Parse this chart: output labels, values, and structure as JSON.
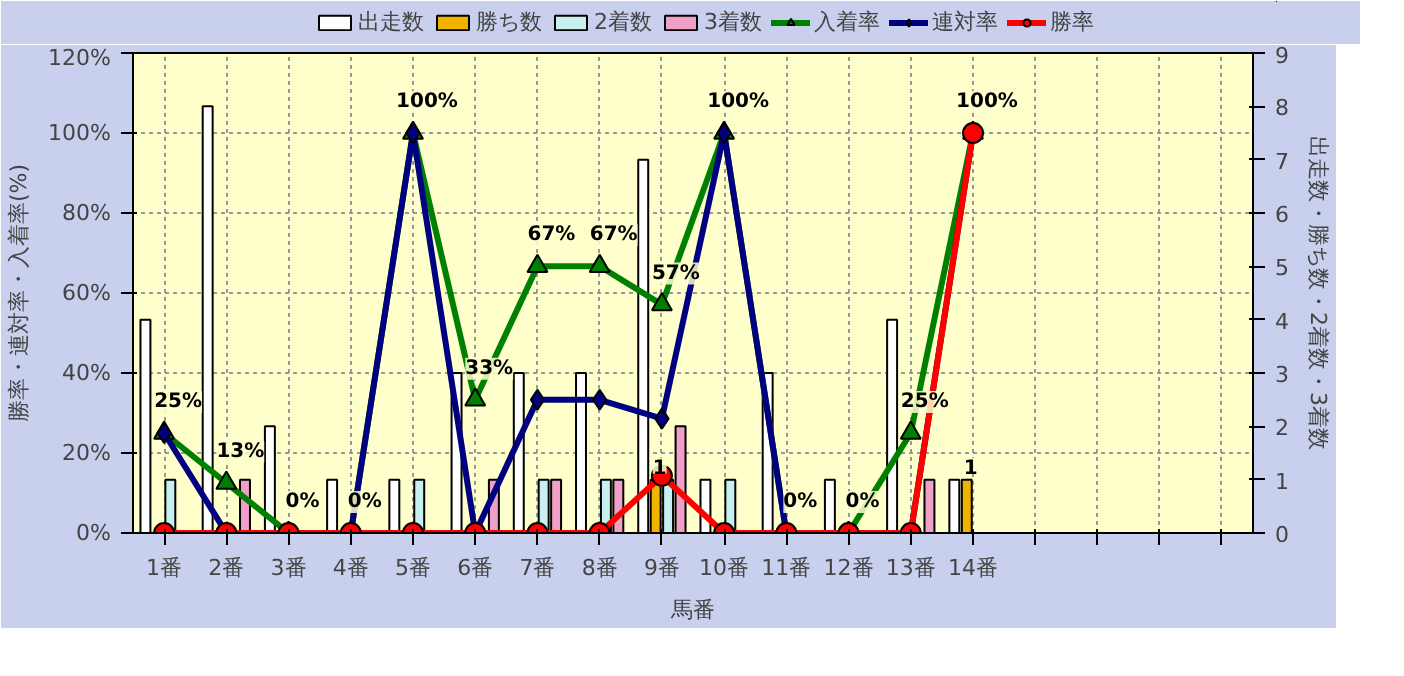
{
  "chart_data": {
    "type": "bar",
    "xlabel": "馬番",
    "ylabel": "勝率・連対率・入着率(%)",
    "y2label": "出走数・勝ち数・2着数・3着数",
    "categories": [
      "1番",
      "2番",
      "3番",
      "4番",
      "5番",
      "6番",
      "7番",
      "8番",
      "9番",
      "10番",
      "11番",
      "12番",
      "13番",
      "14番",
      null,
      null,
      null,
      null
    ],
    "ylim": [
      0,
      120
    ],
    "yticks": [
      {
        "value": 0,
        "label": "0%"
      },
      {
        "value": 20,
        "label": "20%"
      },
      {
        "value": 40,
        "label": "40%"
      },
      {
        "value": 60,
        "label": "60%"
      },
      {
        "value": 80,
        "label": "80%"
      },
      {
        "value": 100,
        "label": "100%"
      },
      {
        "value": 120,
        "label": "120%"
      }
    ],
    "y2lim": [
      0,
      9
    ],
    "y2ticks": [
      0,
      1,
      2,
      3,
      4,
      5,
      6,
      7,
      8,
      9
    ],
    "grid": true,
    "legend": "top",
    "series": [
      {
        "name": "出走数",
        "axis": "y2",
        "color": "#ffffff",
        "values": [
          4,
          8,
          2,
          1,
          1,
          3,
          3,
          3,
          7,
          1,
          3,
          1,
          4,
          1,
          null,
          null,
          null,
          null
        ]
      },
      {
        "name": "勝ち数",
        "axis": "y2",
        "color": "#f0b400",
        "values": [
          0,
          0,
          0,
          0,
          0,
          0,
          0,
          0,
          1,
          0,
          0,
          0,
          0,
          1,
          null,
          null,
          null,
          null
        ],
        "value_labels": [
          null,
          null,
          null,
          null,
          null,
          null,
          null,
          null,
          "1",
          null,
          null,
          null,
          null,
          "1",
          null,
          null,
          null,
          null
        ]
      },
      {
        "name": "2着数",
        "axis": "y2",
        "color": "#c8f0f0",
        "values": [
          1,
          0,
          0,
          0,
          1,
          0,
          1,
          1,
          1,
          1,
          0,
          0,
          0,
          0,
          null,
          null,
          null,
          null
        ]
      },
      {
        "name": "3着数",
        "axis": "y2",
        "color": "#f0a0c8",
        "values": [
          0,
          1,
          0,
          0,
          0,
          1,
          1,
          1,
          2,
          0,
          0,
          0,
          1,
          0,
          null,
          null,
          null,
          null
        ]
      },
      {
        "name": "入着率",
        "type": "line",
        "marker": "triangle",
        "color": "#008000",
        "values": [
          25,
          12.5,
          0,
          0,
          100,
          33.3,
          66.7,
          66.7,
          57.1,
          100,
          0,
          0,
          25,
          100,
          null,
          null,
          null,
          null
        ],
        "value_labels": [
          "25%",
          "13%",
          "0%",
          "0%",
          "100%",
          "33%",
          "67%",
          "67%",
          "57%",
          "100%",
          "0%",
          "0%",
          "25%",
          "100%",
          null,
          null,
          null,
          null
        ]
      },
      {
        "name": "連対率",
        "type": "line",
        "marker": "diamond",
        "color": "#000080",
        "values": [
          25,
          0,
          0,
          0,
          100,
          0,
          33.3,
          33.3,
          28.6,
          100,
          0,
          0,
          0,
          100,
          null,
          null,
          null,
          null
        ]
      },
      {
        "name": "勝率",
        "type": "line",
        "marker": "circle",
        "color": "#ff0000",
        "values": [
          0,
          0,
          0,
          0,
          0,
          0,
          0,
          0,
          14.3,
          0,
          0,
          0,
          0,
          100,
          null,
          null,
          null,
          null
        ]
      }
    ]
  }
}
